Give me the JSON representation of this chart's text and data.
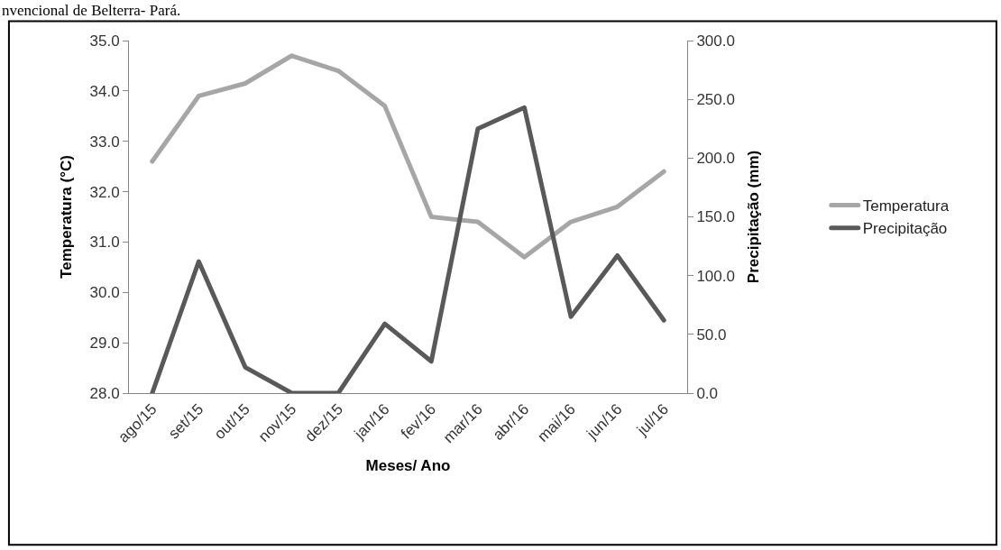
{
  "chart_data": {
    "type": "line",
    "annotations": [
      "nvencional de Belterra- Pará."
    ],
    "xlabel": "Meses/ Ano",
    "ylabel": "Temperatura (°C)",
    "y2label": "Precipitação (mm)",
    "categories": [
      "ago/15",
      "set/15",
      "out/15",
      "nov/15",
      "dez/15",
      "jan/16",
      "fev/16",
      "mar/16",
      "abr/16",
      "mai/16",
      "jun/16",
      "jul/16"
    ],
    "series": [
      {
        "name": "Temperatura",
        "color": "#a6a6a6",
        "values": [
          32.6,
          33.9,
          34.15,
          34.7,
          34.4,
          33.7,
          31.5,
          31.4,
          30.7,
          31.4,
          31.7,
          32.4
        ]
      },
      {
        "name": "Precipitação",
        "color": "#595959",
        "axis": "y2",
        "values": [
          0,
          112,
          22,
          0,
          0,
          59,
          27,
          225,
          243,
          65,
          117,
          62
        ]
      }
    ],
    "ylim": [
      28,
      35
    ],
    "yticks": [
      {
        "value": 28,
        "label": "28.0"
      },
      {
        "value": 29,
        "label": "29.0"
      },
      {
        "value": 30,
        "label": "30.0"
      },
      {
        "value": 31,
        "label": "31.0"
      },
      {
        "value": 32,
        "label": "32.0"
      },
      {
        "value": 33,
        "label": "33.0"
      },
      {
        "value": 34,
        "label": "34.0"
      },
      {
        "value": 35,
        "label": "35.0"
      }
    ],
    "y2lim": [
      0,
      300
    ],
    "y2ticks": [
      {
        "value": 0,
        "label": "0.0"
      },
      {
        "value": 50,
        "label": "50.0"
      },
      {
        "value": 100,
        "label": "100.0"
      },
      {
        "value": 150,
        "label": "150.0"
      },
      {
        "value": 200,
        "label": "200.0"
      },
      {
        "value": 250,
        "label": "250.0"
      },
      {
        "value": 300,
        "label": "300.0"
      }
    ],
    "legend": "right",
    "marker": "none",
    "line_style": "solid"
  }
}
